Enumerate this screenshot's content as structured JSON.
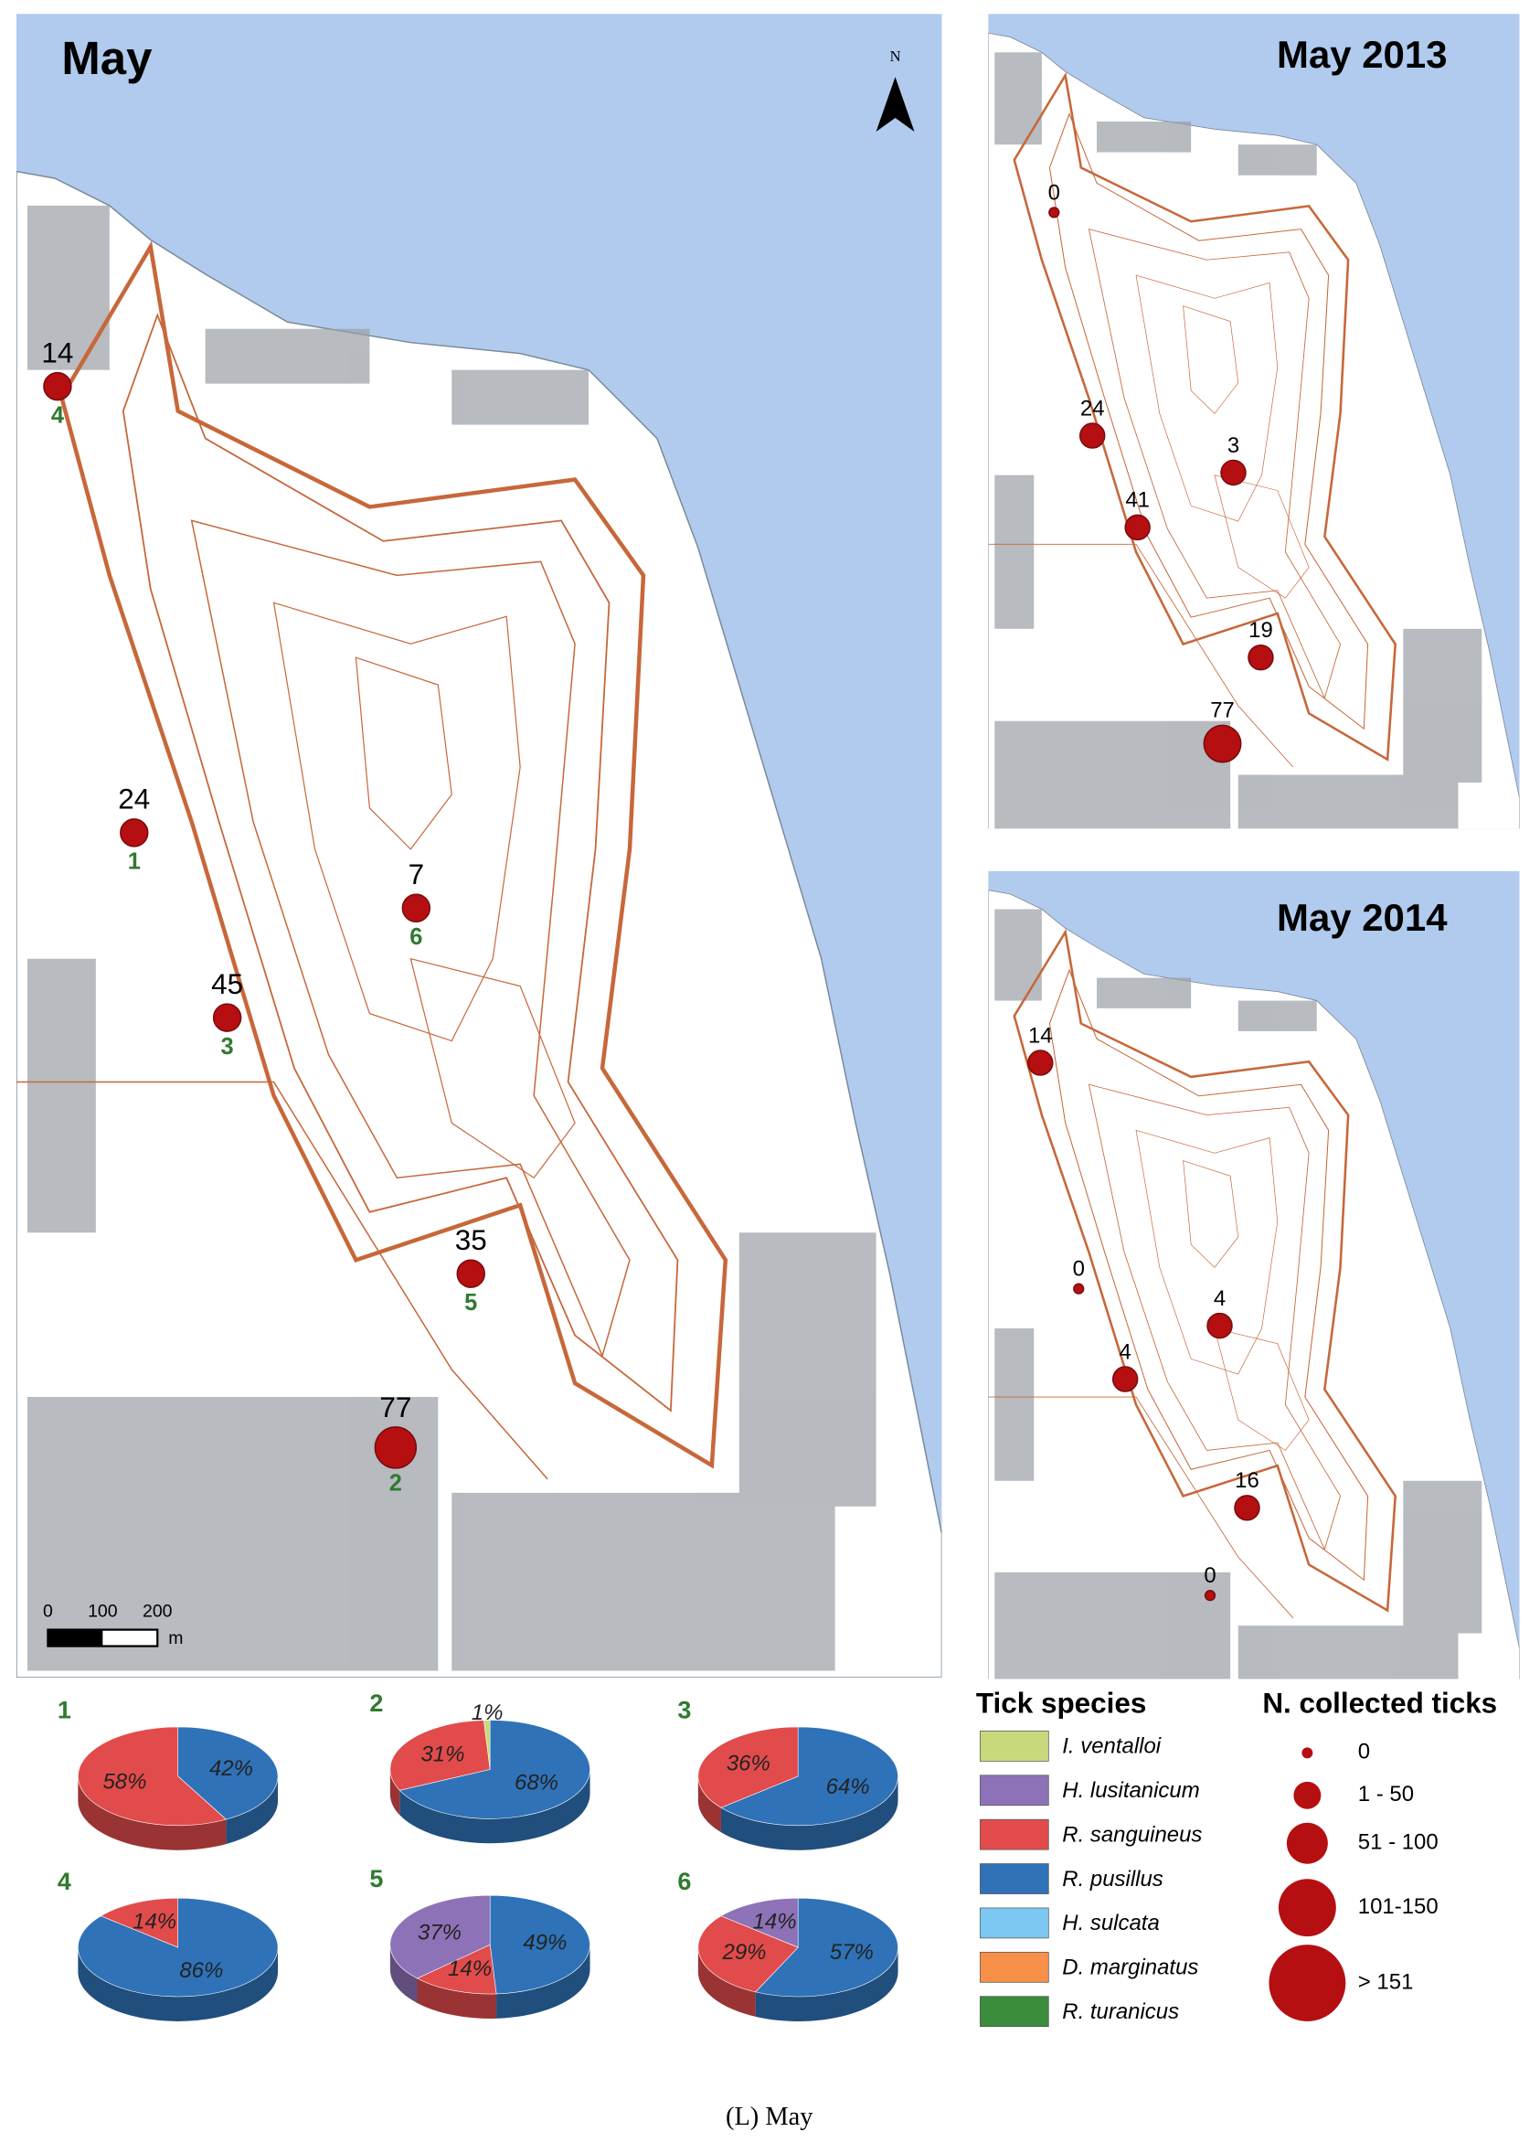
{
  "figure": {
    "main_map": {
      "title": "May",
      "north": "N",
      "scale_bar": {
        "ticks": [
          "0",
          "100",
          "200"
        ],
        "unit": "m"
      },
      "points": [
        {
          "count": 14,
          "site": "4"
        },
        {
          "count": 24,
          "site": "1"
        },
        {
          "count": 45,
          "site": "3"
        },
        {
          "count": 7,
          "site": "6"
        },
        {
          "count": 35,
          "site": "5"
        },
        {
          "count": 77,
          "site": "2"
        }
      ]
    },
    "map_2013": {
      "title": "May 2013",
      "points": [
        {
          "count": 0
        },
        {
          "count": 24
        },
        {
          "count": 3
        },
        {
          "count": 41
        },
        {
          "count": 19
        },
        {
          "count": 77
        }
      ]
    },
    "map_2014": {
      "title": "May 2014",
      "points": [
        {
          "count": 14
        },
        {
          "count": 0
        },
        {
          "count": 4
        },
        {
          "count": 4
        },
        {
          "count": 16
        },
        {
          "count": 0
        }
      ]
    },
    "legend": {
      "species_title": "Tick species",
      "species": [
        {
          "name": "I. ventalloi",
          "color": "#c8d97c"
        },
        {
          "name": "H. lusitanicum",
          "color": "#8e72b8"
        },
        {
          "name": "R. sanguineus",
          "color": "#e24b4b"
        },
        {
          "name": "R. pusillus",
          "color": "#2f72b8"
        },
        {
          "name": "H. sulcata",
          "color": "#7cc8f2"
        },
        {
          "name": "D. marginatus",
          "color": "#f79049"
        },
        {
          "name": "R. turanicus",
          "color": "#3b8c3b"
        }
      ],
      "size_title": "N. collected ticks",
      "sizes": [
        "0",
        "1 - 50",
        "51 - 100",
        "101-150",
        "> 151"
      ]
    },
    "caption": "(L) May"
  },
  "chart_data": [
    {
      "type": "pie",
      "title": "1",
      "values": [
        42,
        58
      ],
      "value_labels": [
        "42%",
        "58%"
      ],
      "colors": [
        "#2f72b8",
        "#e24b4b"
      ]
    },
    {
      "type": "pie",
      "title": "2",
      "values": [
        68,
        31,
        1
      ],
      "value_labels": [
        "68%",
        "31%",
        "1%"
      ],
      "colors": [
        "#2f72b8",
        "#e24b4b",
        "#c8d97c"
      ]
    },
    {
      "type": "pie",
      "title": "3",
      "values": [
        64,
        36
      ],
      "value_labels": [
        "64%",
        "36%"
      ],
      "colors": [
        "#2f72b8",
        "#e24b4b"
      ]
    },
    {
      "type": "pie",
      "title": "4",
      "values": [
        86,
        14
      ],
      "value_labels": [
        "86%",
        "14%"
      ],
      "colors": [
        "#2f72b8",
        "#e24b4b"
      ]
    },
    {
      "type": "pie",
      "title": "5",
      "values": [
        49,
        14,
        37
      ],
      "value_labels": [
        "49%",
        "14%",
        "37%"
      ],
      "colors": [
        "#2f72b8",
        "#e24b4b",
        "#8e72b8"
      ]
    },
    {
      "type": "pie",
      "title": "6",
      "values": [
        57,
        29,
        14
      ],
      "value_labels": [
        "57%",
        "29%",
        "14%"
      ],
      "colors": [
        "#2f72b8",
        "#e24b4b",
        "#8e72b8"
      ]
    }
  ]
}
